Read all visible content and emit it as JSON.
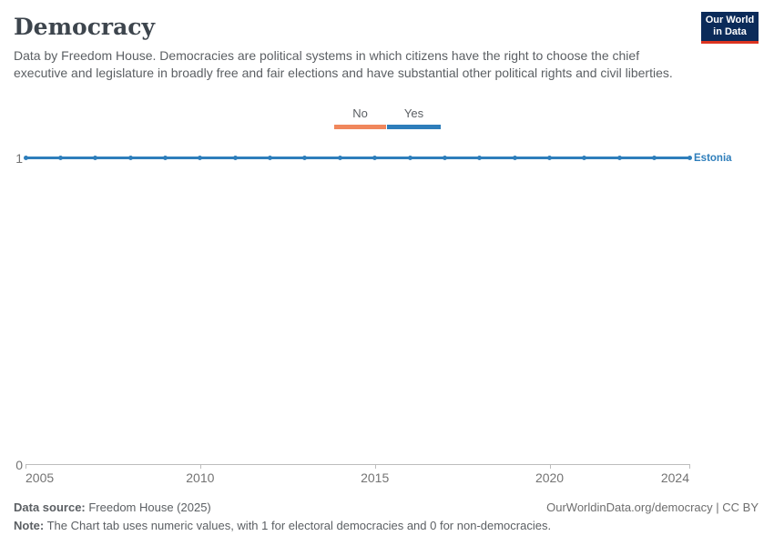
{
  "header": {
    "title": "Democracy",
    "subtitle": "Data by Freedom House. Democracies are political systems in which citizens have the right to choose the chief executive and legislature in broadly free and fair elections and have substantial other political rights and civil liberties.",
    "logo": {
      "line1": "Our World",
      "line2": "in Data",
      "bg_color": "#0b2b59",
      "accent_color": "#dc3420"
    }
  },
  "legend": {
    "items": [
      {
        "label": "No",
        "color": "#f0875c"
      },
      {
        "label": "Yes",
        "color": "#2e7ebb"
      }
    ]
  },
  "chart_data": {
    "type": "line",
    "title": "Democracy",
    "entity": "Estonia",
    "x": [
      2005,
      2006,
      2007,
      2008,
      2009,
      2010,
      2011,
      2012,
      2013,
      2014,
      2015,
      2016,
      2017,
      2018,
      2019,
      2020,
      2021,
      2022,
      2023,
      2024
    ],
    "values": [
      1,
      1,
      1,
      1,
      1,
      1,
      1,
      1,
      1,
      1,
      1,
      1,
      1,
      1,
      1,
      1,
      1,
      1,
      1,
      1
    ],
    "xlim": [
      2005,
      2024
    ],
    "ylim": [
      0,
      1
    ],
    "xticks": [
      2005,
      2010,
      2015,
      2020,
      2024
    ],
    "yticks": [
      0,
      1
    ],
    "line_color": "#2e7ebb",
    "grid": false,
    "legend_position": "top-center",
    "value_meaning": "1 = electoral democracy (Yes), 0 = non-democracy (No)"
  },
  "footer": {
    "datasource_label": "Data source:",
    "datasource_value": " Freedom House (2025)",
    "link": "OurWorldinData.org/democracy | CC BY",
    "note_label": "Note:",
    "note_value": " The Chart tab uses numeric values, with 1 for electoral democracies and 0 for non-democracies."
  }
}
